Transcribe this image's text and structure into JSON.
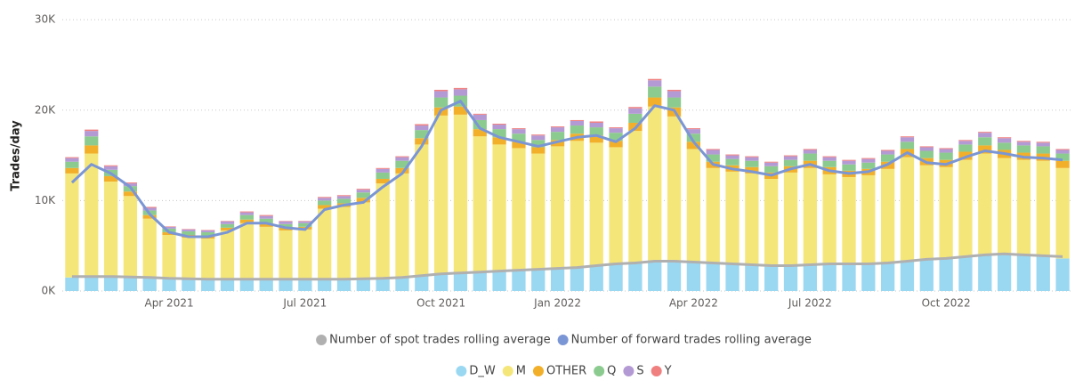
{
  "chart_data": {
    "type": "bar",
    "stacked": true,
    "y_label": "Trades/day",
    "categories": [
      null,
      null,
      null,
      null,
      null,
      "Apr 2021",
      null,
      null,
      null,
      null,
      null,
      null,
      "Jul 2021",
      null,
      null,
      null,
      null,
      null,
      null,
      "Oct 2021",
      null,
      null,
      null,
      null,
      null,
      "Jan 2022",
      null,
      null,
      null,
      null,
      null,
      null,
      "Apr 2022",
      null,
      null,
      null,
      null,
      null,
      "Jul 2022",
      null,
      null,
      null,
      null,
      null,
      null,
      "Oct 2022",
      null,
      null,
      null,
      null,
      null,
      null
    ],
    "ylim": [
      0,
      31000
    ],
    "yticks": [
      {
        "value": 0,
        "label": "0K"
      },
      {
        "value": 10000,
        "label": "10K"
      },
      {
        "value": 20000,
        "label": "20K"
      },
      {
        "value": 30000,
        "label": "30K"
      }
    ],
    "grid": true,
    "series": [
      {
        "name": "D_W",
        "color": "#9ad8f2",
        "values": [
          1500,
          1700,
          1600,
          1500,
          1500,
          1400,
          1300,
          1300,
          1200,
          1300,
          1300,
          1300,
          1200,
          1300,
          1300,
          1300,
          1400,
          1500,
          1700,
          1900,
          2000,
          2100,
          2200,
          2300,
          2400,
          2500,
          2600,
          2900,
          3100,
          3200,
          3400,
          3300,
          3200,
          3100,
          2900,
          2800,
          2700,
          2800,
          2900,
          3000,
          3100,
          3000,
          3200,
          3400,
          3600,
          3700,
          3900,
          4100,
          4200,
          4000,
          3900,
          3600
        ]
      },
      {
        "name": "M",
        "color": "#f5e67a",
        "values": [
          11500,
          13500,
          10500,
          9000,
          6500,
          4800,
          4600,
          4500,
          5500,
          6200,
          5800,
          5400,
          5600,
          7800,
          8000,
          8500,
          10500,
          11500,
          14500,
          17500,
          17500,
          15000,
          14000,
          13500,
          12800,
          13500,
          14000,
          13500,
          12800,
          14500,
          17000,
          16000,
          12500,
          10500,
          10300,
          10200,
          9700,
          10300,
          10700,
          9900,
          9500,
          9800,
          10300,
          11400,
          10300,
          10000,
          10600,
          11100,
          10500,
          10500,
          10500,
          10000
        ]
      },
      {
        "name": "OTHER",
        "color": "#f2b02a",
        "values": [
          600,
          900,
          600,
          500,
          400,
          300,
          300,
          300,
          300,
          400,
          400,
          300,
          300,
          400,
          400,
          500,
          500,
          600,
          700,
          900,
          900,
          800,
          800,
          700,
          700,
          700,
          800,
          800,
          700,
          900,
          1000,
          1000,
          800,
          700,
          700,
          700,
          700,
          700,
          800,
          800,
          700,
          700,
          800,
          900,
          800,
          800,
          900,
          900,
          900,
          800,
          800,
          800
        ]
      },
      {
        "name": "Q",
        "color": "#8ccb8f",
        "values": [
          700,
          1000,
          700,
          600,
          500,
          400,
          400,
          400,
          400,
          500,
          500,
          400,
          400,
          500,
          500,
          600,
          700,
          800,
          900,
          1100,
          1200,
          1000,
          900,
          900,
          800,
          900,
          900,
          900,
          900,
          1000,
          1200,
          1100,
          900,
          800,
          700,
          700,
          700,
          700,
          800,
          700,
          700,
          700,
          800,
          800,
          800,
          800,
          800,
          900,
          800,
          800,
          800,
          800
        ]
      },
      {
        "name": "S",
        "color": "#b49ad4",
        "values": [
          400,
          600,
          400,
          300,
          300,
          200,
          200,
          200,
          300,
          300,
          300,
          300,
          200,
          300,
          300,
          300,
          400,
          400,
          500,
          700,
          700,
          600,
          500,
          500,
          500,
          500,
          500,
          500,
          500,
          600,
          700,
          700,
          500,
          500,
          400,
          400,
          400,
          400,
          400,
          400,
          400,
          400,
          400,
          500,
          400,
          400,
          400,
          500,
          500,
          400,
          400,
          400
        ]
      },
      {
        "name": "Y",
        "color": "#f08080",
        "values": [
          100,
          150,
          100,
          100,
          100,
          50,
          50,
          50,
          50,
          100,
          100,
          50,
          50,
          100,
          100,
          100,
          100,
          100,
          150,
          150,
          150,
          100,
          100,
          100,
          100,
          100,
          100,
          150,
          100,
          150,
          150,
          150,
          100,
          100,
          100,
          100,
          100,
          100,
          100,
          100,
          100,
          100,
          100,
          100,
          100,
          100,
          100,
          100,
          100,
          100,
          100,
          100
        ]
      },
      {
        "name": "Number of spot trades rolling average",
        "type": "line",
        "color": "#b0b0b0",
        "values": [
          1600,
          1600,
          1600,
          1550,
          1500,
          1400,
          1350,
          1300,
          1300,
          1300,
          1300,
          1300,
          1300,
          1300,
          1300,
          1350,
          1400,
          1500,
          1700,
          1900,
          2000,
          2100,
          2200,
          2300,
          2400,
          2500,
          2600,
          2800,
          3000,
          3100,
          3300,
          3300,
          3200,
          3100,
          3000,
          2900,
          2800,
          2800,
          2900,
          3000,
          3000,
          3000,
          3100,
          3300,
          3500,
          3600,
          3800,
          4000,
          4100,
          4000,
          3900,
          3800
        ]
      },
      {
        "name": "Number of forward trades rolling average",
        "type": "line",
        "color": "#7b96d4",
        "values": [
          12000,
          14000,
          13000,
          11500,
          8500,
          6500,
          6000,
          6000,
          6500,
          7500,
          7500,
          7000,
          6800,
          9000,
          9500,
          9800,
          11500,
          13000,
          16000,
          20000,
          21000,
          18000,
          17000,
          16500,
          16000,
          16500,
          17000,
          17200,
          16500,
          18000,
          20500,
          20000,
          16500,
          14000,
          13500,
          13200,
          12800,
          13500,
          14000,
          13300,
          13000,
          13200,
          14000,
          15300,
          14200,
          14000,
          14800,
          15500,
          15200,
          14800,
          14700,
          14500
        ]
      }
    ]
  }
}
